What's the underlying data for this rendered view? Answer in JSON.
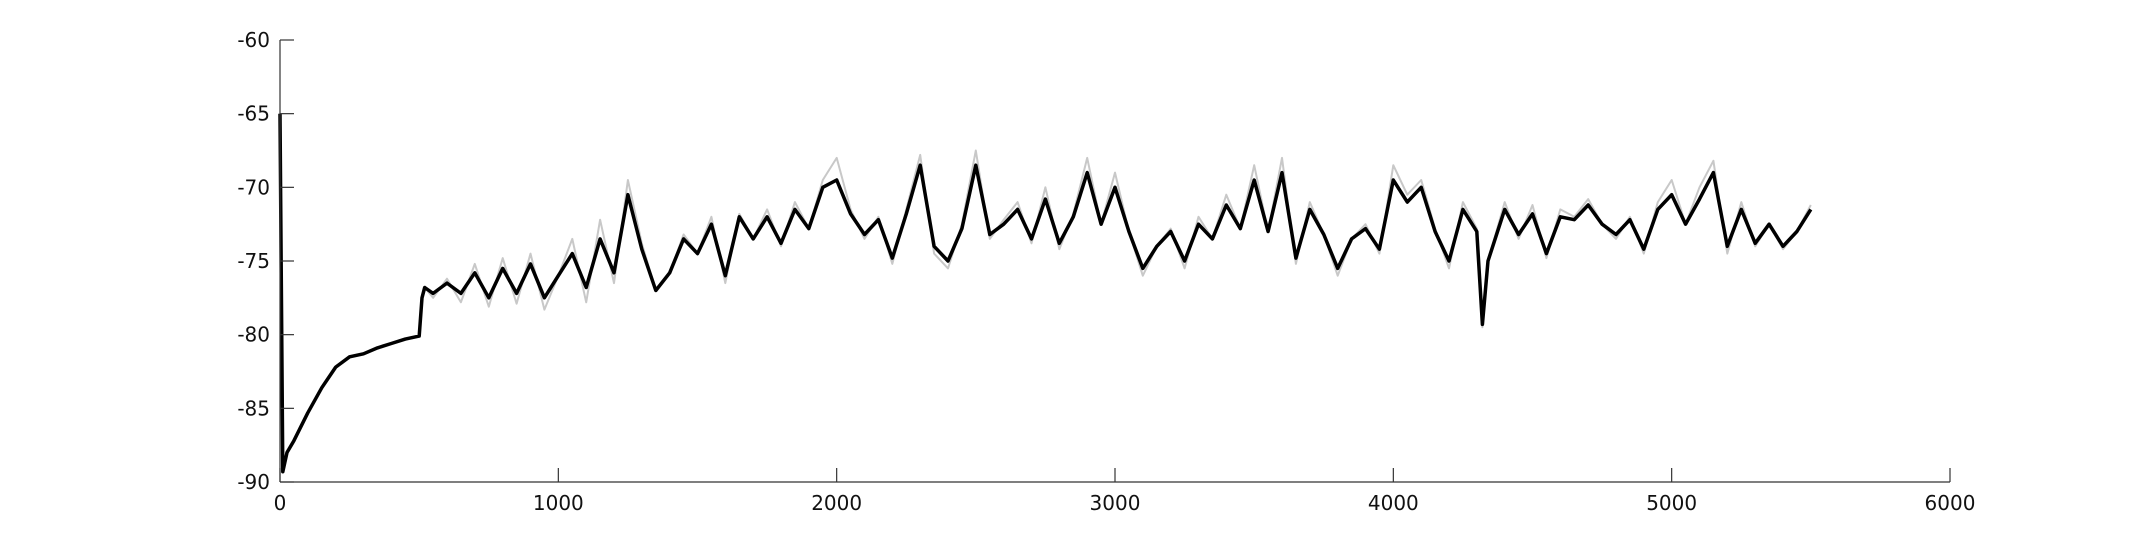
{
  "chart_data": {
    "type": "line",
    "title": "",
    "xlabel": "",
    "ylabel": "",
    "xlim": [
      0,
      6000
    ],
    "ylim": [
      -90,
      -60
    ],
    "grid": false,
    "x_ticks": [
      0,
      1000,
      2000,
      3000,
      4000,
      5000,
      6000
    ],
    "x_tick_labels": [
      "0",
      "1000",
      "2000",
      "3000",
      "4000",
      "5000",
      "6000"
    ],
    "y_ticks": [
      -90,
      -85,
      -80,
      -75,
      -70,
      -65,
      -60
    ],
    "y_tick_labels": [
      "-90",
      "-85",
      "-80",
      "-75",
      "-70",
      "-65",
      "-60"
    ],
    "series": [
      {
        "role": "raw",
        "color": "#c8c8c8",
        "x": [
          0,
          10,
          25,
          50,
          100,
          150,
          200,
          250,
          300,
          350,
          400,
          450,
          500,
          510,
          520,
          550,
          600,
          650,
          700,
          750,
          800,
          850,
          900,
          950,
          1000,
          1050,
          1100,
          1150,
          1200,
          1250,
          1300,
          1350,
          1400,
          1450,
          1500,
          1550,
          1600,
          1650,
          1700,
          1750,
          1800,
          1850,
          1900,
          1950,
          2000,
          2050,
          2100,
          2150,
          2200,
          2250,
          2300,
          2350,
          2400,
          2450,
          2500,
          2550,
          2600,
          2650,
          2700,
          2750,
          2800,
          2850,
          2900,
          2950,
          3000,
          3050,
          3100,
          3150,
          3200,
          3250,
          3300,
          3350,
          3400,
          3450,
          3500,
          3550,
          3600,
          3650,
          3700,
          3750,
          3800,
          3850,
          3900,
          3950,
          4000,
          4050,
          4100,
          4150,
          4200,
          4250,
          4300,
          4320,
          4340,
          4400,
          4450,
          4500,
          4550,
          4600,
          4650,
          4700,
          4750,
          4800,
          4850,
          4900,
          4950,
          5000,
          5050,
          5100,
          5150,
          5200,
          5250,
          5300,
          5350,
          5400,
          5450,
          5500
        ],
        "y": [
          -65,
          -89.3,
          -88,
          -87.2,
          -85.3,
          -83.6,
          -82.2,
          -81.5,
          -81.3,
          -80.9,
          -80.6,
          -80.3,
          -80.1,
          -77.5,
          -76.8,
          -77.5,
          -76.2,
          -77.8,
          -75.2,
          -78.1,
          -74.8,
          -77.9,
          -74.5,
          -78.3,
          -76.0,
          -73.5,
          -77.8,
          -72.2,
          -76.5,
          -69.5,
          -73.8,
          -77.0,
          -75.8,
          -73.2,
          -74.5,
          -72.0,
          -76.5,
          -71.8,
          -73.5,
          -71.5,
          -74.0,
          -71.0,
          -72.8,
          -69.5,
          -68.0,
          -71.5,
          -73.5,
          -72.0,
          -75.2,
          -71.5,
          -67.8,
          -74.5,
          -75.5,
          -72.5,
          -67.5,
          -73.5,
          -72.2,
          -71.0,
          -73.8,
          -70.0,
          -74.2,
          -71.8,
          -68.0,
          -72.5,
          -69.0,
          -73.0,
          -76.0,
          -74.0,
          -72.8,
          -75.5,
          -72.0,
          -73.5,
          -70.5,
          -72.8,
          -68.5,
          -73.0,
          -68.0,
          -75.2,
          -71.0,
          -73.2,
          -76.0,
          -73.5,
          -72.5,
          -74.5,
          -68.5,
          -70.5,
          -69.5,
          -72.8,
          -75.5,
          -71.0,
          -72.8,
          -79.5,
          -75.0,
          -71.0,
          -73.5,
          -71.2,
          -74.8,
          -71.5,
          -72.0,
          -70.8,
          -72.5,
          -73.5,
          -72.0,
          -74.5,
          -71.0,
          -69.5,
          -72.5,
          -70.0,
          -68.2,
          -74.5,
          -71.0,
          -74.0,
          -72.5,
          -74.2,
          -73.0,
          -71.2
        ]
      },
      {
        "role": "smoothed",
        "color": "#000000",
        "x": [
          0,
          10,
          25,
          50,
          100,
          150,
          200,
          250,
          300,
          350,
          400,
          450,
          500,
          510,
          520,
          550,
          600,
          650,
          700,
          750,
          800,
          850,
          900,
          950,
          1000,
          1050,
          1100,
          1150,
          1200,
          1250,
          1300,
          1350,
          1400,
          1450,
          1500,
          1550,
          1600,
          1650,
          1700,
          1750,
          1800,
          1850,
          1900,
          1950,
          2000,
          2050,
          2100,
          2150,
          2200,
          2250,
          2300,
          2350,
          2400,
          2450,
          2500,
          2550,
          2600,
          2650,
          2700,
          2750,
          2800,
          2850,
          2900,
          2950,
          3000,
          3050,
          3100,
          3150,
          3200,
          3250,
          3300,
          3350,
          3400,
          3450,
          3500,
          3550,
          3600,
          3650,
          3700,
          3750,
          3800,
          3850,
          3900,
          3950,
          4000,
          4050,
          4100,
          4150,
          4200,
          4250,
          4300,
          4320,
          4340,
          4400,
          4450,
          4500,
          4550,
          4600,
          4650,
          4700,
          4750,
          4800,
          4850,
          4900,
          4950,
          5000,
          5050,
          5100,
          5150,
          5200,
          5250,
          5300,
          5350,
          5400,
          5450,
          5500
        ],
        "y": [
          -65,
          -89.3,
          -88,
          -87.2,
          -85.3,
          -83.6,
          -82.2,
          -81.5,
          -81.3,
          -80.9,
          -80.6,
          -80.3,
          -80.1,
          -77.5,
          -76.8,
          -77.2,
          -76.5,
          -77.2,
          -75.8,
          -77.5,
          -75.5,
          -77.2,
          -75.2,
          -77.5,
          -76.0,
          -74.5,
          -76.8,
          -73.5,
          -75.8,
          -70.5,
          -74.2,
          -77.0,
          -75.8,
          -73.5,
          -74.5,
          -72.5,
          -76.0,
          -72.0,
          -73.5,
          -72.0,
          -73.8,
          -71.5,
          -72.8,
          -70.0,
          -69.5,
          -71.8,
          -73.2,
          -72.2,
          -74.8,
          -71.8,
          -68.5,
          -74.0,
          -75.0,
          -72.8,
          -68.5,
          -73.2,
          -72.5,
          -71.5,
          -73.5,
          -70.8,
          -73.8,
          -72.0,
          -69.0,
          -72.5,
          -70.0,
          -73.0,
          -75.5,
          -74.0,
          -73.0,
          -75.0,
          -72.5,
          -73.5,
          -71.2,
          -72.8,
          -69.5,
          -73.0,
          -69.0,
          -74.8,
          -71.5,
          -73.2,
          -75.5,
          -73.5,
          -72.8,
          -74.2,
          -69.5,
          -71.0,
          -70.0,
          -73.0,
          -75.0,
          -71.5,
          -73.0,
          -79.3,
          -75.0,
          -71.5,
          -73.2,
          -71.8,
          -74.5,
          -72.0,
          -72.2,
          -71.2,
          -72.5,
          -73.2,
          -72.2,
          -74.2,
          -71.5,
          -70.5,
          -72.5,
          -70.8,
          -69.0,
          -74.0,
          -71.5,
          -73.8,
          -72.5,
          -74.0,
          -73.0,
          -71.5
        ]
      }
    ]
  }
}
